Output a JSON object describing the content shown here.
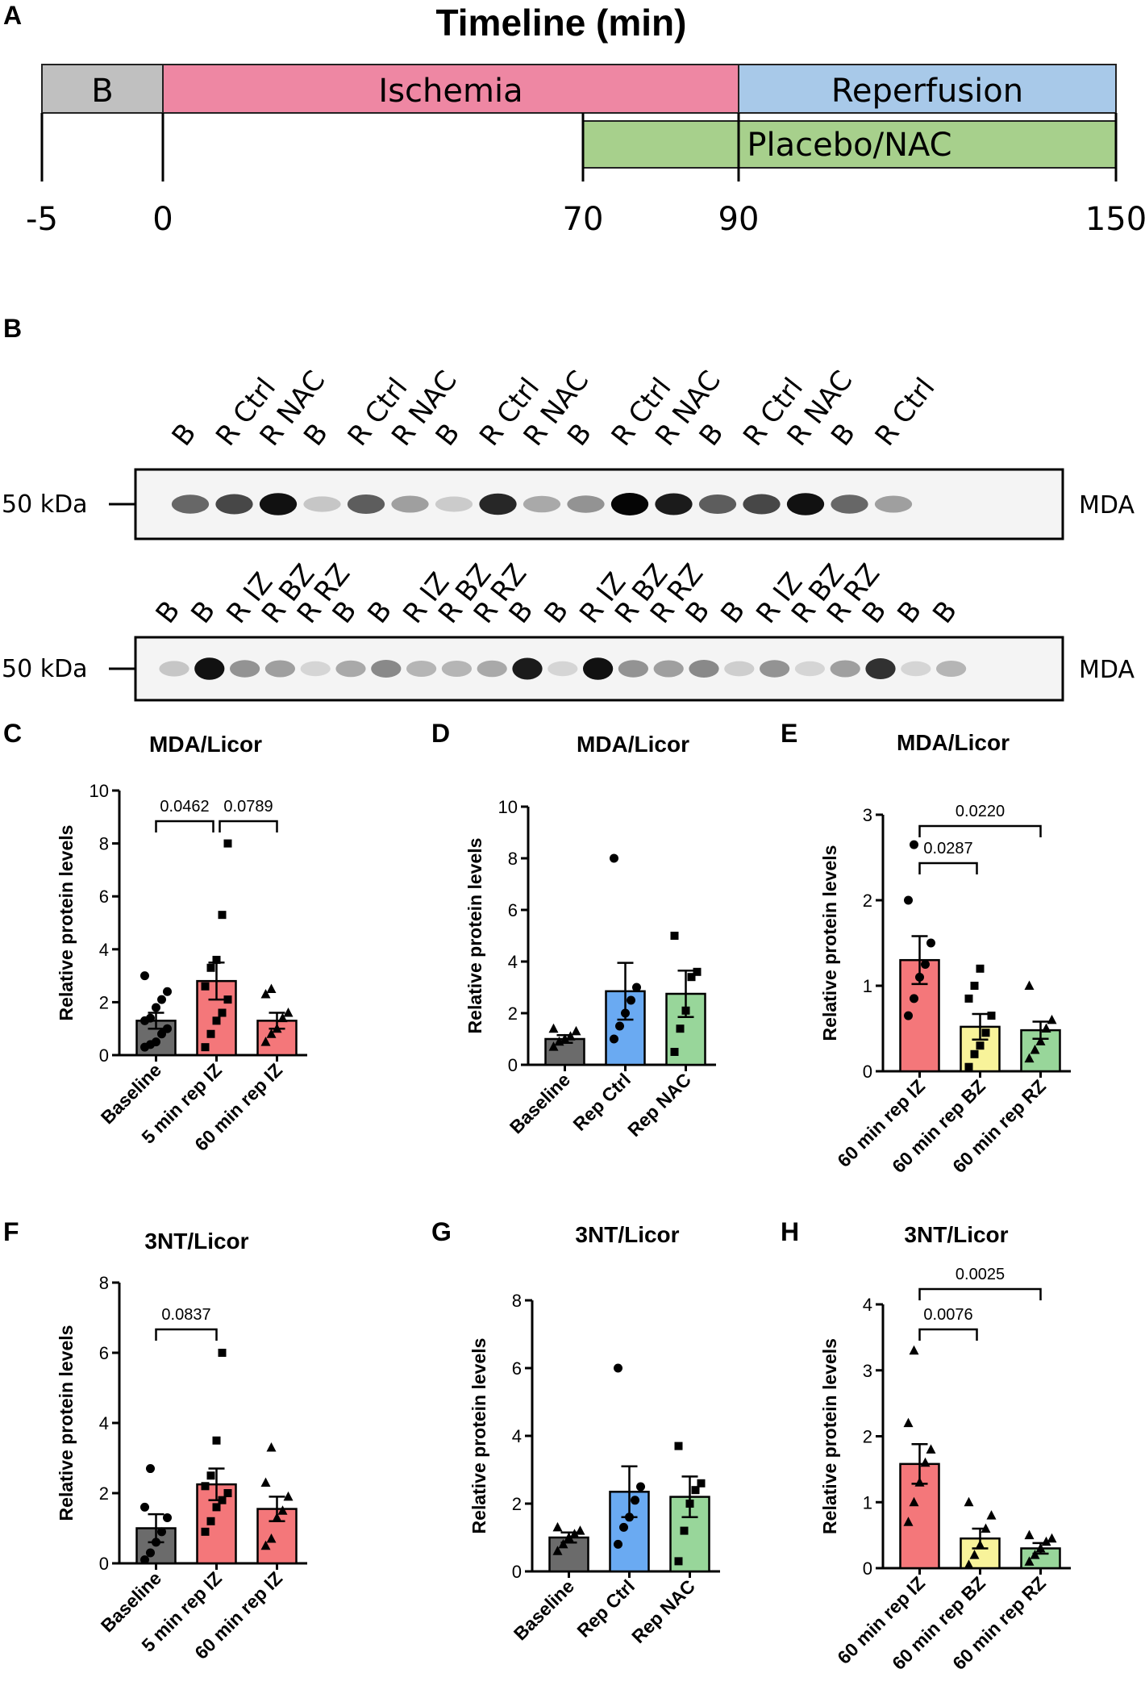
{
  "panel_letters": {
    "a": "A",
    "b": "B",
    "c": "C",
    "d": "D",
    "e": "E",
    "f": "F",
    "g": "G",
    "h": "H"
  },
  "timeline": {
    "title": "Timeline (min)",
    "segments": [
      {
        "label": "B",
        "start": -5,
        "end": 0,
        "color": "#c0c0c0"
      },
      {
        "label": "Ischemia",
        "start": 0,
        "end": 90,
        "color": "#ee87a3"
      },
      {
        "label": "Reperfusion",
        "start": 90,
        "end": 150,
        "color": "#a8c9e9"
      }
    ],
    "treatment": {
      "label": "Placebo/NAC",
      "start": 70,
      "end": 150,
      "color": "#a7d08c"
    },
    "ticks": [
      {
        "value": -5,
        "label": "-5"
      },
      {
        "value": 0,
        "label": "0"
      },
      {
        "value": 70,
        "label": "70"
      },
      {
        "value": 90,
        "label": "90"
      },
      {
        "value": 150,
        "label": "150"
      }
    ]
  },
  "blots": [
    {
      "marker": "50 kDa",
      "target": "MDA",
      "lanes": [
        "B",
        "R Ctrl",
        "R NAC",
        "B",
        "R Ctrl",
        "R NAC",
        "B",
        "R Ctrl",
        "R NAC",
        "B",
        "R Ctrl",
        "R NAC",
        "B",
        "R Ctrl",
        "R NAC",
        "B",
        "R Ctrl"
      ],
      "bands": [
        0.55,
        0.7,
        0.95,
        0.12,
        0.6,
        0.3,
        0.1,
        0.85,
        0.25,
        0.35,
        1.0,
        0.9,
        0.6,
        0.7,
        0.95,
        0.55,
        0.3
      ]
    },
    {
      "marker": "50 kDa",
      "target": "MDA",
      "lanes": [
        "B",
        "B",
        "R IZ",
        "R BZ",
        "R RZ",
        "B",
        "B",
        "R IZ",
        "R BZ",
        "R RZ",
        "B",
        "B",
        "R IZ",
        "R BZ",
        "R RZ",
        "B",
        "B",
        "R IZ",
        "R BZ",
        "R RZ",
        "B",
        "B",
        "B"
      ],
      "bands": [
        0.12,
        0.95,
        0.35,
        0.3,
        0.05,
        0.25,
        0.4,
        0.2,
        0.2,
        0.25,
        0.9,
        0.05,
        0.95,
        0.35,
        0.3,
        0.4,
        0.08,
        0.35,
        0.05,
        0.3,
        0.8,
        0.05,
        0.2
      ]
    }
  ],
  "chart_data": [
    {
      "panel": "C",
      "type": "bar",
      "title": "MDA/Licor",
      "ylabel": "Relative protein levels",
      "categories": [
        "Baseline",
        "5 min rep IZ",
        "60 min rep IZ"
      ],
      "values": [
        1.3,
        2.8,
        1.3
      ],
      "errors": [
        0.3,
        0.7,
        0.3
      ],
      "colors": [
        "#6b6b6b",
        "#f4777a",
        "#f4777a"
      ],
      "markers": [
        "circle",
        "square",
        "triangle"
      ],
      "points": [
        [
          0.3,
          0.4,
          0.5,
          0.8,
          1.0,
          1.3,
          1.4,
          1.8,
          2.1,
          2.4,
          3.0
        ],
        [
          0.3,
          0.8,
          1.3,
          1.6,
          2.1,
          2.6,
          3.3,
          3.6,
          5.3,
          8.0
        ],
        [
          0.5,
          0.8,
          1.0,
          1.4,
          1.6,
          2.3,
          2.5
        ]
      ],
      "ylim": [
        0,
        10
      ],
      "yticks": [
        0,
        2,
        4,
        6,
        8,
        10
      ],
      "comparisons": [
        {
          "from": 0,
          "to": 1,
          "p": "0.0462",
          "level": 0
        },
        {
          "from": 1,
          "to": 2,
          "p": "0.0789",
          "level": 0
        }
      ]
    },
    {
      "panel": "D",
      "type": "bar",
      "title": "MDA/Licor",
      "ylabel": "Relative protein levels",
      "categories": [
        "Baseline",
        "Rep Ctrl",
        "Rep NAC"
      ],
      "values": [
        1.0,
        2.85,
        2.75
      ],
      "errors": [
        0.15,
        1.1,
        0.9
      ],
      "colors": [
        "#6b6b6b",
        "#6aaaf2",
        "#98d69a"
      ],
      "markers": [
        "triangle",
        "circle",
        "square"
      ],
      "points": [
        [
          0.7,
          0.9,
          1.0,
          1.1,
          1.3,
          1.4
        ],
        [
          1.0,
          1.5,
          2.0,
          2.5,
          3.0,
          8.0
        ],
        [
          0.5,
          1.4,
          2.1,
          3.4,
          3.6,
          5.0
        ]
      ],
      "ylim": [
        0,
        10
      ],
      "yticks": [
        0,
        2,
        4,
        6,
        8,
        10
      ],
      "comparisons": []
    },
    {
      "panel": "E",
      "type": "bar",
      "title": "MDA/Licor",
      "ylabel": "Relative protein levels",
      "categories": [
        "60 min rep IZ",
        "60 min rep BZ",
        "60 min rep RZ"
      ],
      "values": [
        1.3,
        0.52,
        0.48
      ],
      "errors": [
        0.28,
        0.15,
        0.1
      ],
      "colors": [
        "#f4777a",
        "#f8f39a",
        "#98d69a"
      ],
      "markers": [
        "circle",
        "square",
        "triangle"
      ],
      "points": [
        [
          0.65,
          0.85,
          1.1,
          1.25,
          1.5,
          2.0,
          2.65
        ],
        [
          0.05,
          0.2,
          0.3,
          0.45,
          0.65,
          0.85,
          1.0,
          1.2
        ],
        [
          0.15,
          0.25,
          0.35,
          0.5,
          0.6,
          1.0
        ]
      ],
      "ylim": [
        0,
        3
      ],
      "yticks": [
        0,
        1,
        2,
        3
      ],
      "comparisons": [
        {
          "from": 0,
          "to": 1,
          "p": "0.0287",
          "level": 0
        },
        {
          "from": 0,
          "to": 2,
          "p": "0.0220",
          "level": 1
        }
      ]
    },
    {
      "panel": "F",
      "type": "bar",
      "title": "3NT/Licor",
      "ylabel": "Relative protein levels",
      "categories": [
        "Baseline",
        "5 min rep IZ",
        "60 min rep IZ"
      ],
      "values": [
        1.0,
        2.25,
        1.55
      ],
      "errors": [
        0.4,
        0.45,
        0.35
      ],
      "colors": [
        "#6b6b6b",
        "#f4777a",
        "#f4777a"
      ],
      "markers": [
        "circle",
        "square",
        "triangle"
      ],
      "points": [
        [
          0.1,
          0.3,
          0.6,
          0.9,
          1.3,
          1.6,
          2.7
        ],
        [
          0.9,
          1.2,
          1.6,
          1.8,
          2.0,
          2.2,
          2.5,
          3.5,
          6.0
        ],
        [
          0.5,
          0.7,
          1.3,
          1.5,
          1.9,
          2.3,
          3.3
        ]
      ],
      "ylim": [
        0,
        8
      ],
      "yticks": [
        0,
        2,
        4,
        6,
        8
      ],
      "comparisons": [
        {
          "from": 0,
          "to": 1,
          "p": "0.0837",
          "level": 0
        }
      ]
    },
    {
      "panel": "G",
      "type": "bar",
      "title": "3NT/Licor",
      "ylabel": "Relative protein levels",
      "categories": [
        "Baseline",
        "Rep Ctrl",
        "Rep NAC"
      ],
      "values": [
        1.0,
        2.35,
        2.2
      ],
      "errors": [
        0.15,
        0.75,
        0.6
      ],
      "colors": [
        "#6b6b6b",
        "#6aaaf2",
        "#98d69a"
      ],
      "markers": [
        "triangle",
        "circle",
        "square"
      ],
      "points": [
        [
          0.6,
          0.8,
          1.0,
          1.1,
          1.2,
          1.3
        ],
        [
          0.8,
          1.3,
          1.6,
          2.1,
          2.5,
          6.0
        ],
        [
          0.3,
          1.2,
          2.0,
          2.4,
          2.6,
          3.7
        ]
      ],
      "ylim": [
        0,
        8
      ],
      "yticks": [
        0,
        2,
        4,
        6,
        8
      ],
      "comparisons": []
    },
    {
      "panel": "H",
      "type": "bar",
      "title": "3NT/Licor",
      "ylabel": "Relative protein levels",
      "categories": [
        "60 min rep IZ",
        "60 min rep BZ",
        "60 min rep RZ"
      ],
      "values": [
        1.58,
        0.45,
        0.3
      ],
      "errors": [
        0.3,
        0.15,
        0.08
      ],
      "colors": [
        "#f4777a",
        "#f8f39a",
        "#98d69a"
      ],
      "markers": [
        "triangle",
        "triangle",
        "triangle"
      ],
      "points": [
        [
          0.7,
          1.0,
          1.3,
          1.6,
          1.8,
          2.2,
          3.3
        ],
        [
          0.05,
          0.2,
          0.35,
          0.6,
          0.8,
          1.0
        ],
        [
          0.1,
          0.2,
          0.3,
          0.4,
          0.45,
          0.5
        ]
      ],
      "ylim": [
        0,
        4
      ],
      "yticks": [
        0,
        1,
        2,
        3,
        4
      ],
      "comparisons": [
        {
          "from": 0,
          "to": 1,
          "p": "0.0076",
          "level": 0
        },
        {
          "from": 0,
          "to": 2,
          "p": "0.0025",
          "level": 1
        }
      ]
    }
  ]
}
